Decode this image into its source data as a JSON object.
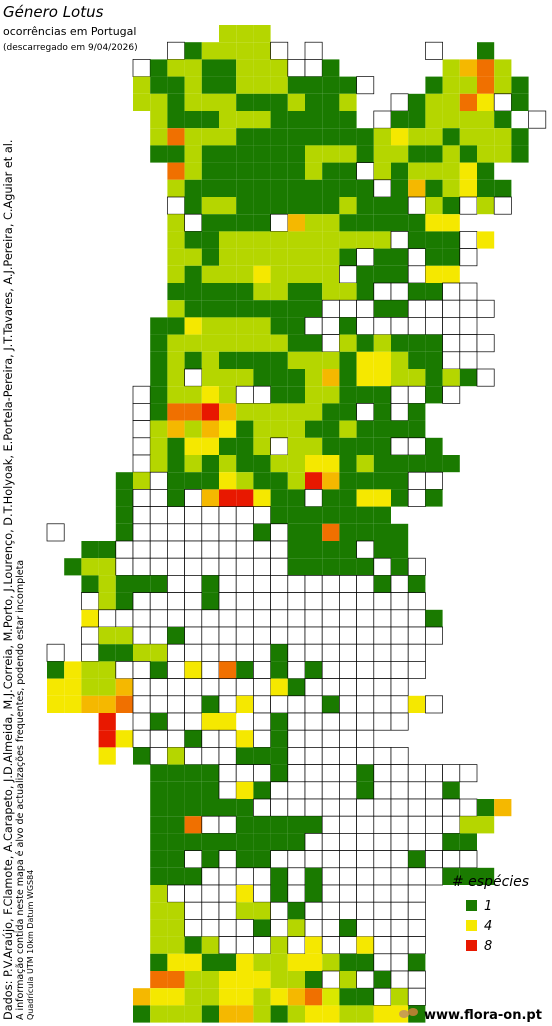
{
  "header": {
    "title": "Género Lotus",
    "subtitle": "ocorrências em Portugal",
    "date": "(descarregado em 9/04/2026)"
  },
  "credits": [
    "Dados: P.V.Araújo, F.Clamote, A.Carapeto, J.D.Almeida, M.J.Correia, M.Porto, J.Lourenço, D.T.Holyoak, E.Portela-Pereira, J.T.Tavares, A.J.Pereira, C.Aguiar et al.",
    "A informação contida neste mapa é alvo de actualizações frequentes, podendo estar incompleta",
    "Quadrícula UTM 10km Datum WGS84"
  ],
  "footer": "www.flora-on.pt",
  "legend": {
    "title": "# espécies",
    "items": [
      {
        "label": 1,
        "color": "#1a7a00"
      },
      {
        "label": 4,
        "color": "#f5e800"
      },
      {
        "label": 8,
        "color": "#e81800"
      }
    ]
  },
  "map": {
    "palette": {
      "0": "#ffffff",
      "1": "#1a7a00",
      "2": "#b5d600",
      "3": "#d9e800",
      "4": "#f5e800",
      "5": "#f5b800",
      "6": "#f07000",
      "8": "#e81800"
    },
    "rows": [
      "          222                ",
      "       0122220 0      0  1   ",
      "     012211222001      2562  ",
      "     21121122211110   122621 ",
      "     2212221112112  01226401 ",
      "      211122211111 01122221 0",
      "      2622211111111242212221 ",
      "      1121111112221221121221 ",
      "       6211111121102122241   ",
      "       21111111111101512411  ",
      "       01221111112111021020  ",
      "       20111105221111144     ",
      "       2112222222222011104   ",
      "       221222222210110110    ",
      "       21222422220111044     ",
      "       111112211221001100    ",
      "       2111111110001100000   ",
      "      1142222110010000000    ",
      "      12222222110212111000   ",
      "      1212111122214421100    ",
      "      12022211125144221210   ",
      "     0122420011221110010     ",
      "     01668522222110101       ",
      "     02525412221121111       ",
      "     021441120221111001      ",
      "     0212121122441211111     ",
      "    1201114211285111100      ",
      "    1001058841101144101      ",
      "    1000000001111111         ",
      "0   10000000101161111        ",
      "  1100000000001111011        ",
      " 122000000000011111010       ",
      "  12111001000000000101       ",
      "  02100001000000000000       ",
      "  400000000000000000001      ",
      "  022001000000000000000      ",
      "0 01122000000100000000       ",
      "1422001040610101000000       ",
      "442250000000041000000        ",
      "44556000010400001000040      ",
      "   8 010044 010000000        ",
      "   8400010040100000          ",
      "   4 1020001110000000        ",
      "      1111000100001000000    ",
      "      111104100000100001     ",
      "      111111000000000000015  ",
      "      11600111110000000022   ",
      "      1111111110000000011    ",
      "      1101011000000001000    ",
      "      11100001010000000111   ",
      "      2000040101000000       ",
      "      2200022010000000       ",
      "      2200001020010000       ",
      "      2212000204004000       ",
      "      1441142244211001       ",
      "      6622444221020100       ",
      "     54422442456311020       ",
      "     12221552124422441       "
    ]
  }
}
